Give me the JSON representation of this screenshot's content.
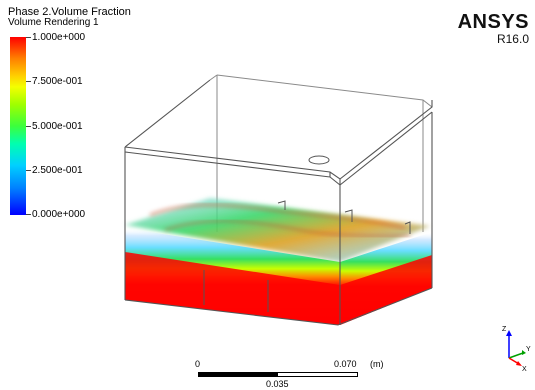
{
  "legend": {
    "title": "Phase 2.Volume Fraction",
    "subtitle": "Volume Rendering 1",
    "ticks": [
      "1.000e+000",
      "7.500e-001",
      "5.000e-001",
      "2.500e-001",
      "0.000e+000"
    ]
  },
  "brand": {
    "name": "ANSYS",
    "version": "R16.0"
  },
  "scale": {
    "start": "0",
    "end": "0.070",
    "unit": "(m)",
    "mid": "0.035"
  },
  "axes": {
    "z": "Z",
    "y": "Y",
    "x": "X"
  },
  "colors": {
    "high": "#ff0000",
    "mid": "#3cff3c",
    "low": "#0000ff",
    "wireframe": "#555555"
  }
}
